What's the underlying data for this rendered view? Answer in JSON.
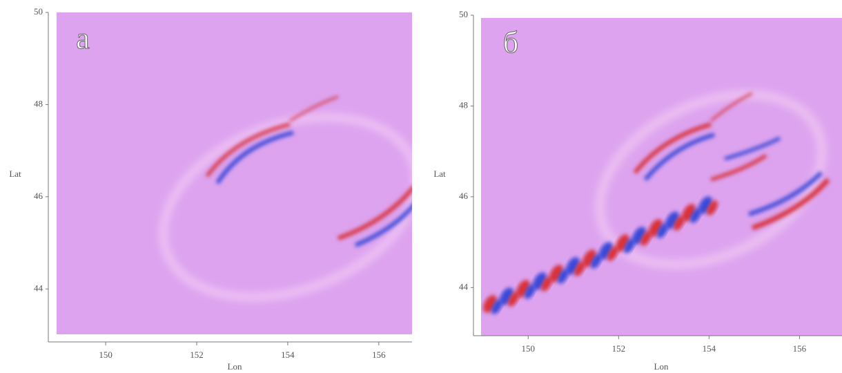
{
  "chart_data": [
    {
      "type": "field",
      "panel_label": "a",
      "xlabel": "Lon",
      "ylabel": "Lat",
      "xlim": [
        148.74,
        156.73
      ],
      "ylim": [
        42.85,
        50
      ],
      "xticks": [
        150,
        152,
        154,
        156
      ],
      "yticks": [
        44,
        46,
        48,
        50
      ],
      "background": "#dda3ef"
    },
    {
      "type": "field",
      "panel_label": "б",
      "xlabel": "Lon",
      "ylabel": "Lat",
      "xlim": [
        148.79,
        156.94
      ],
      "ylim": [
        42.94,
        50
      ],
      "xticks": [
        150,
        152,
        154,
        156
      ],
      "yticks": [
        44,
        46,
        48,
        50
      ],
      "background": "#dda3ef"
    }
  ]
}
